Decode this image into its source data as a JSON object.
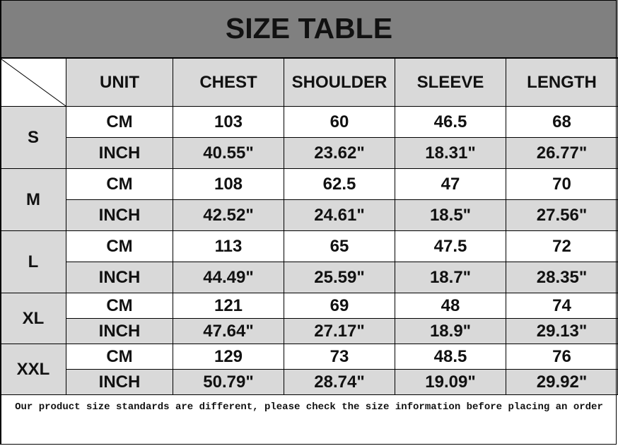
{
  "title": "SIZE TABLE",
  "headers": [
    "UNIT",
    "CHEST",
    "SHOULDER",
    "SLEEVE",
    "LENGTH"
  ],
  "sizes": [
    {
      "size": "S",
      "rows": [
        {
          "unit": "CM",
          "values": [
            "103",
            "60",
            "46.5",
            "68"
          ]
        },
        {
          "unit": "INCH",
          "values": [
            "40.55\"",
            "23.62\"",
            "18.31\"",
            "26.77\""
          ]
        }
      ]
    },
    {
      "size": "M",
      "rows": [
        {
          "unit": "CM",
          "values": [
            "108",
            "62.5",
            "47",
            "70"
          ]
        },
        {
          "unit": "INCH",
          "values": [
            "42.52\"",
            "24.61\"",
            "18.5\"",
            "27.56\""
          ]
        }
      ]
    },
    {
      "size": "L",
      "rows": [
        {
          "unit": "CM",
          "values": [
            "113",
            "65",
            "47.5",
            "72"
          ]
        },
        {
          "unit": "INCH",
          "values": [
            "44.49\"",
            "25.59\"",
            "18.7\"",
            "28.35\""
          ]
        }
      ]
    },
    {
      "size": "XL",
      "rows": [
        {
          "unit": "CM",
          "values": [
            "121",
            "69",
            "48",
            "74"
          ]
        },
        {
          "unit": "INCH",
          "values": [
            "47.64\"",
            "27.17\"",
            "18.9\"",
            "29.13\""
          ]
        }
      ]
    },
    {
      "size": "XXL",
      "rows": [
        {
          "unit": "CM",
          "values": [
            "129",
            "73",
            "48.5",
            "76"
          ]
        },
        {
          "unit": "INCH",
          "values": [
            "50.79\"",
            "28.74\"",
            "19.09\"",
            "29.92\""
          ]
        }
      ]
    }
  ],
  "footer": "Our product size standards are different, please check the size information before placing an order",
  "colors": {
    "title_bg": "#808080",
    "header_bg": "#d9d9d9",
    "inch_row_bg": "#d9d9d9",
    "cm_row_bg": "#ffffff"
  }
}
